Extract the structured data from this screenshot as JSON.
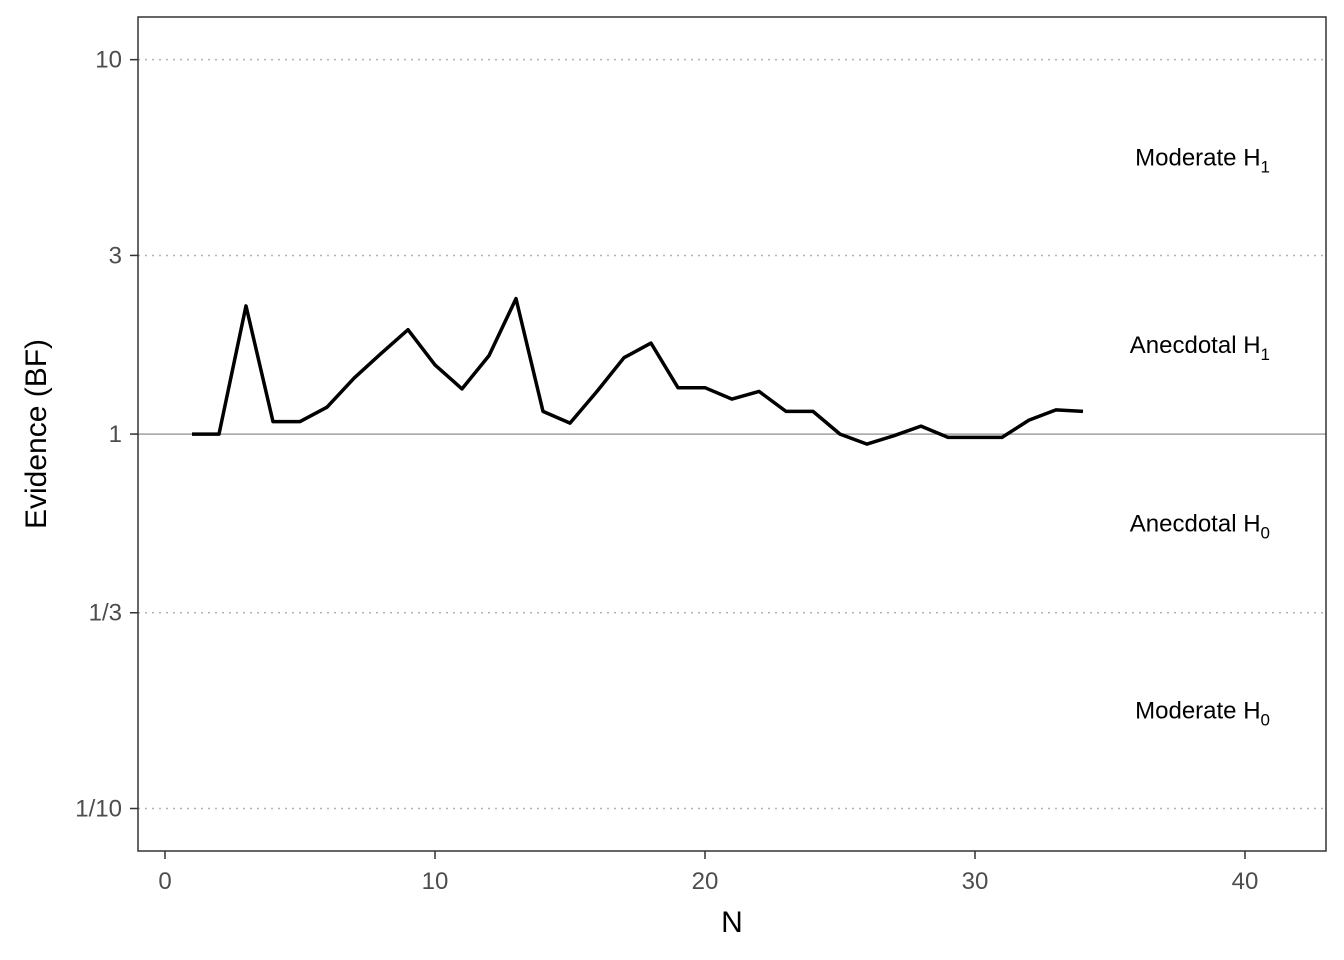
{
  "chart_data": {
    "type": "line",
    "xlabel": "N",
    "ylabel": "Evidence (BF)",
    "y_scale": "log",
    "xlim": [
      -1,
      43
    ],
    "ylim": [
      0.077,
      13
    ],
    "x_ticks": [
      {
        "value": 0,
        "label": "0"
      },
      {
        "value": 10,
        "label": "10"
      },
      {
        "value": 20,
        "label": "20"
      },
      {
        "value": 30,
        "label": "30"
      },
      {
        "value": 40,
        "label": "40"
      }
    ],
    "y_ticks": [
      {
        "value": 10,
        "label": "10"
      },
      {
        "value": 3,
        "label": "3"
      },
      {
        "value": 1,
        "label": "1"
      },
      {
        "value": 0.3333,
        "label": "1/3"
      },
      {
        "value": 0.1,
        "label": "1/10"
      }
    ],
    "dotted_gridlines_y": [
      10,
      3,
      0.3333,
      0.1
    ],
    "reference_line_y": 1,
    "region_labels": [
      {
        "base": "Moderate H",
        "sub": "1",
        "y": 5.4772
      },
      {
        "base": "Anecdotal H",
        "sub": "1",
        "y": 1.7321
      },
      {
        "base": "Anecdotal H",
        "sub": "0",
        "y": 0.5774
      },
      {
        "base": "Moderate H",
        "sub": "0",
        "y": 0.1826
      }
    ],
    "series": [
      {
        "x": [
          1,
          2,
          3,
          4,
          5,
          6,
          7,
          8,
          9,
          10,
          11,
          12,
          13,
          14,
          15,
          16,
          17,
          18,
          19,
          20,
          21,
          22,
          23,
          24,
          25,
          26,
          27,
          28,
          29,
          30,
          31,
          32,
          33,
          34
        ],
        "y": [
          1.0,
          1.0,
          2.2,
          1.08,
          1.08,
          1.18,
          1.41,
          1.64,
          1.9,
          1.53,
          1.32,
          1.62,
          2.3,
          1.15,
          1.07,
          1.3,
          1.6,
          1.75,
          1.33,
          1.33,
          1.24,
          1.3,
          1.15,
          1.15,
          1.0,
          0.94,
          0.99,
          1.05,
          0.98,
          0.98,
          0.98,
          1.09,
          1.16,
          1.15
        ]
      }
    ],
    "colors": {
      "line": "#000000",
      "panel_border": "#333333",
      "grid": "#b3b3b3",
      "reference": "#a0a0a0"
    },
    "grid": "horizontal dotted at tick positions"
  }
}
